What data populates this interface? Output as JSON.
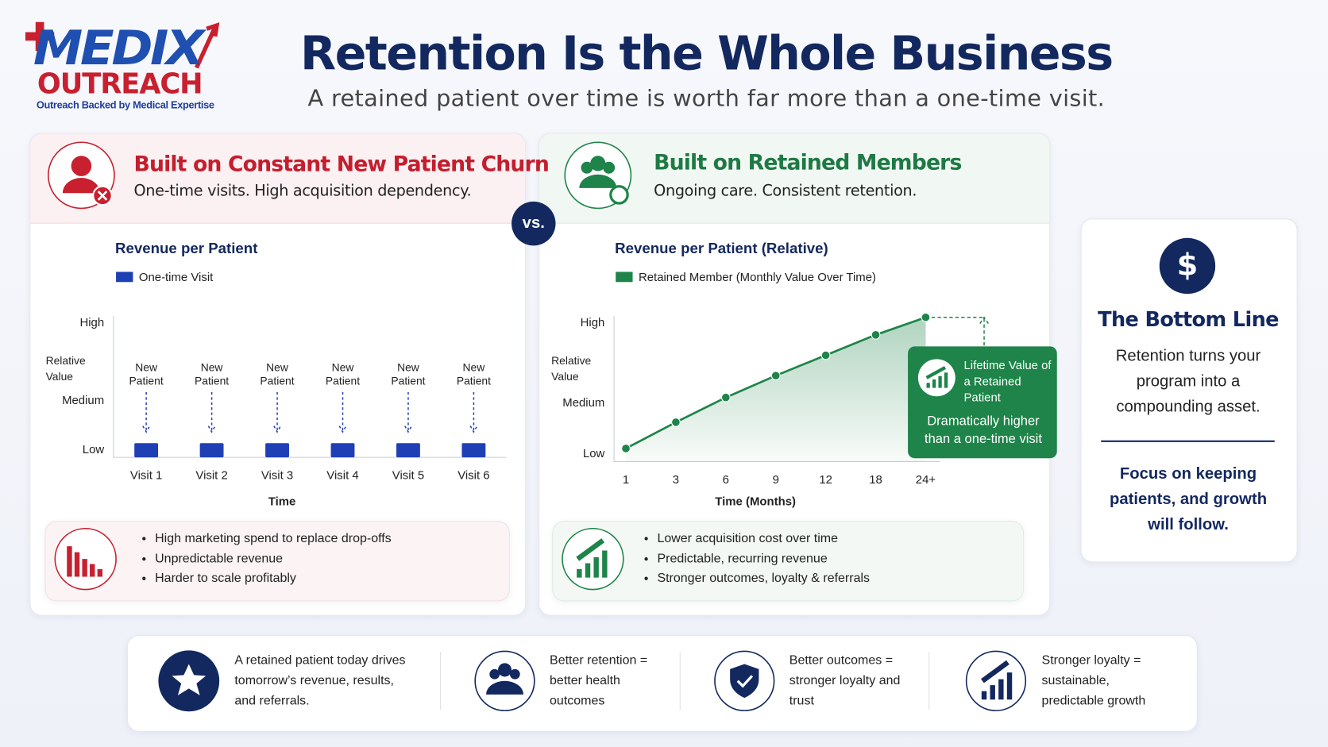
{
  "header": {
    "logo_top": "MEDIX",
    "logo_bottom": "OUTREACH",
    "logo_tagline": "Outreach Backed by Medical Expertise",
    "title": "Retention Is the Whole Business",
    "subtitle": "A retained patient over time is worth far more than a one-time visit."
  },
  "left_panel": {
    "title": "Built on Constant New Patient Churn",
    "subtitle": "One-time visits. High acquisition dependency.",
    "bullets": [
      "High marketing spend to replace drop-offs",
      "Unpredictable revenue",
      "Harder to scale profitably"
    ]
  },
  "vs": "vs.",
  "right_panel": {
    "title": "Built on Retained Members",
    "subtitle": "Ongoing care. Consistent retention.",
    "bullets": [
      "Lower acquisition cost over time",
      "Predictable, recurring revenue",
      "Stronger outcomes, loyalty & referrals"
    ]
  },
  "chart_data": [
    {
      "type": "bar",
      "title": "Revenue per Patient",
      "categories": [
        "Visit 1",
        "Visit 2",
        "Visit 3",
        "Visit 4",
        "Visit 5",
        "Visit 6"
      ],
      "series": [
        {
          "name": "One-time Visit",
          "color": "#1f3fb5",
          "values": [
            1,
            1,
            1,
            1,
            1,
            1
          ]
        }
      ],
      "bar_labels": [
        "New Patient",
        "New Patient",
        "New Patient",
        "New Patient",
        "New Patient",
        "New Patient"
      ],
      "x_label": "Time",
      "y_label": "Relative Value",
      "ylim": [
        0,
        10
      ],
      "yticks": [
        {
          "value": 0.5,
          "label": "Low"
        },
        {
          "value": 4,
          "label": "Medium"
        },
        {
          "value": 9.5,
          "label": "High"
        }
      ]
    },
    {
      "type": "line",
      "title": "Revenue per Patient (Relative)",
      "categories": [
        "1",
        "3",
        "6",
        "9",
        "12",
        "18",
        "24+"
      ],
      "series": [
        {
          "name": "Retained Member (Monthly Value Over Time)",
          "color": "#1e8449",
          "values": [
            0.9,
            2.7,
            4.4,
            5.9,
            7.3,
            8.7,
            9.9
          ]
        }
      ],
      "x_label": "Time (Months)",
      "y_label": "Relative Value",
      "ylim": [
        0,
        10
      ],
      "yticks": [
        {
          "value": 0.5,
          "label": "Low"
        },
        {
          "value": 4,
          "label": "Medium"
        },
        {
          "value": 9.5,
          "label": "High"
        }
      ],
      "annotation": {
        "title": "Lifetime Value of a Retained Patient",
        "text": "Dramatically higher than a one-time visit"
      }
    }
  ],
  "bottom_line": {
    "icon": "$",
    "title": "The Bottom Line",
    "text": "Retention turns your program into a compounding asset.",
    "emphasis": "Focus on keeping patients, and growth will follow."
  },
  "footer": [
    "A retained patient today drives tomorrow’s revenue, results, and referrals.",
    "Better retention = better health outcomes",
    "Better outcomes = stronger loyalty and trust",
    "Stronger loyalty = sustainable, predictable growth"
  ]
}
